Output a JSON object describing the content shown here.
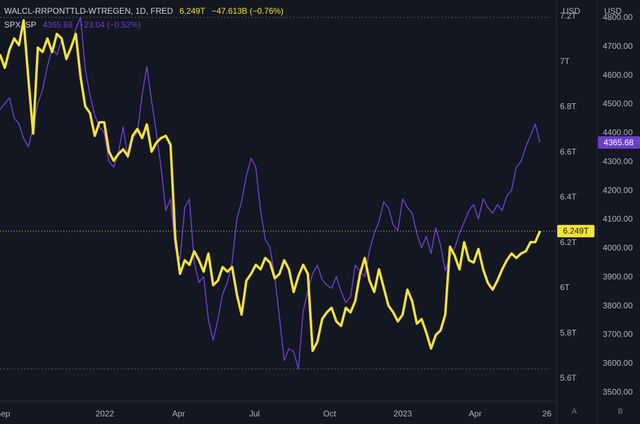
{
  "legend": {
    "series1": {
      "name": "WALCL-RRPONTTLD-WTREGEN, 1D, FRED",
      "value": "6.249T",
      "change": "−47.613B (−0.76%)"
    },
    "series2": {
      "name": "SPX, SP",
      "value": "4365.68",
      "change": "−23.04 (−0.52%)"
    }
  },
  "axis_titles": {
    "left_axis": "USD",
    "right_axis": "USD"
  },
  "scale_buttons": {
    "auto": "A",
    "log": "B"
  },
  "colors": {
    "background": "#131722",
    "liquidity": "#f5e33b",
    "spx": "#6a3fc8",
    "axis_text": "#b2b5be",
    "label_text_dark": "#131722",
    "label_text_light": "#ffffff",
    "reference_line": "#5d606b"
  },
  "chart_data": {
    "type": "line",
    "x_tick_labels": [
      "Sep",
      "2022",
      "Apr",
      "Jul",
      "Oct",
      "2023",
      "Apr",
      "26"
    ],
    "left_axis": {
      "unit": "T",
      "ticks": [
        "7.2T",
        "7T",
        "6.8T",
        "6.6T",
        "6.4T",
        "6.2T",
        "6T",
        "5.8T",
        "5.6T"
      ],
      "range": [
        5.5,
        7.27
      ]
    },
    "right_axis": {
      "ticks": [
        "4800.00",
        "4700.00",
        "4600.00",
        "4500.00",
        "4400.00",
        "4300.00",
        "4200.00",
        "4100.00",
        "4000.00",
        "3900.00",
        "3800.00",
        "3700.00",
        "3600.00",
        "3500.00"
      ],
      "range": [
        3470,
        4860
      ]
    },
    "reference_levels": {
      "spx_top": 4800,
      "spx_bottom": 3580
    },
    "last_value_labels": {
      "liquidity": "6.249T",
      "spx": "4365.68"
    },
    "series": [
      {
        "name": "WALCL-RRPONTTLD-WTREGEN",
        "axis": "left",
        "values": [
          7.03,
          6.97,
          7.05,
          7.1,
          7.07,
          7.18,
          6.92,
          6.68,
          7.06,
          7.04,
          7.1,
          7.04,
          7.12,
          7.1,
          7.01,
          7.06,
          7.12,
          6.93,
          6.8,
          6.77,
          6.67,
          6.73,
          6.73,
          6.6,
          6.56,
          6.59,
          6.61,
          6.58,
          6.67,
          6.7,
          6.66,
          6.72,
          6.6,
          6.64,
          6.66,
          6.67,
          6.63,
          6.22,
          6.06,
          6.12,
          6.1,
          6.16,
          6.12,
          6.07,
          6.15,
          6.01,
          6.03,
          6.09,
          6.07,
          6.09,
          5.97,
          5.88,
          6.03,
          6.06,
          6.1,
          6.08,
          6.13,
          6.11,
          6.04,
          6.06,
          6.12,
          6.08,
          5.98,
          6.05,
          6.1,
          6.06,
          5.72,
          5.76,
          5.86,
          5.89,
          5.91,
          5.85,
          5.83,
          5.91,
          5.89,
          5.94,
          6.06,
          6.13,
          6.03,
          5.98,
          6.08,
          6.0,
          5.92,
          5.89,
          5.85,
          5.88,
          5.99,
          5.94,
          5.84,
          5.86,
          5.8,
          5.73,
          5.79,
          5.81,
          5.88,
          6.18,
          6.14,
          6.08,
          6.2,
          6.12,
          6.11,
          6.17,
          6.08,
          6.02,
          5.99,
          6.03,
          6.08,
          6.12,
          6.15,
          6.13,
          6.15,
          6.16,
          6.2,
          6.2,
          6.249
        ]
      },
      {
        "name": "SPX",
        "axis": "right",
        "values": [
          4480,
          4500,
          4520,
          4450,
          4430,
          4380,
          4350,
          4420,
          4500,
          4550,
          4630,
          4690,
          4670,
          4720,
          4650,
          4690,
          4760,
          4800,
          4620,
          4530,
          4460,
          4420,
          4400,
          4300,
          4280,
          4330,
          4420,
          4310,
          4380,
          4400,
          4530,
          4630,
          4510,
          4400,
          4280,
          4130,
          4170,
          4000,
          3960,
          4140,
          4170,
          3950,
          3880,
          3900,
          3750,
          3680,
          3750,
          3840,
          3880,
          3950,
          4100,
          4160,
          4250,
          4310,
          4280,
          4130,
          4030,
          4000,
          3900,
          3760,
          3610,
          3650,
          3640,
          3580,
          3780,
          3850,
          3910,
          3940,
          3890,
          3870,
          3860,
          3900,
          3850,
          3810,
          3830,
          3940,
          3920,
          3900,
          3990,
          4050,
          4090,
          4160,
          4140,
          4080,
          4060,
          4170,
          4140,
          4120,
          4050,
          4000,
          4040,
          3980,
          4070,
          4010,
          3920,
          3970,
          4000,
          4050,
          4090,
          4130,
          4150,
          4100,
          4170,
          4140,
          4120,
          4150,
          4130,
          4180,
          4200,
          4280,
          4300,
          4350,
          4390,
          4430,
          4365.68
        ]
      }
    ]
  }
}
